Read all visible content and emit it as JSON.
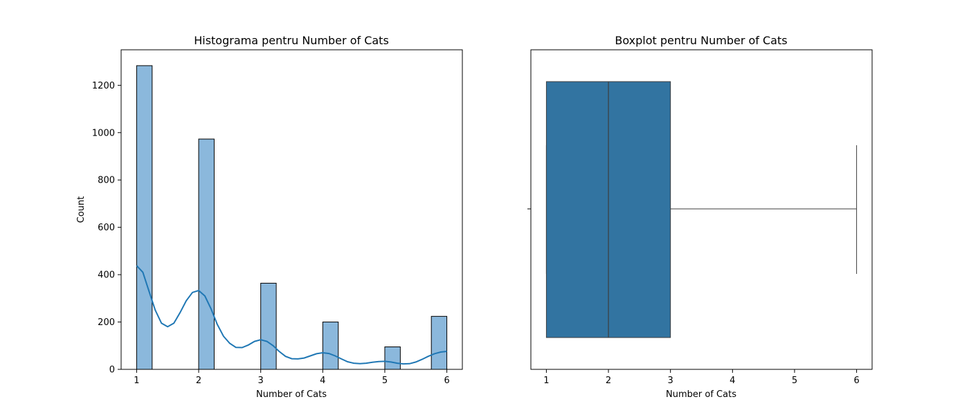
{
  "chart_data": [
    {
      "type": "bar",
      "title": "Histograma pentru Number of Cats",
      "xlabel": "Number of Cats",
      "ylabel": "Count",
      "xlim": [
        0.75,
        6.25
      ],
      "ylim": [
        0,
        1350
      ],
      "xticks": [
        "1",
        "2",
        "3",
        "4",
        "5",
        "6"
      ],
      "yticks": [
        "0",
        "200",
        "400",
        "600",
        "800",
        "1000",
        "1200"
      ],
      "bins": [
        {
          "start": 1.0,
          "end": 1.25,
          "count": 1283
        },
        {
          "start": 2.0,
          "end": 2.25,
          "count": 973
        },
        {
          "start": 3.0,
          "end": 3.25,
          "count": 364
        },
        {
          "start": 4.0,
          "end": 4.25,
          "count": 200
        },
        {
          "start": 5.0,
          "end": 5.25,
          "count": 95
        },
        {
          "start": 5.75,
          "end": 6.0,
          "count": 224
        }
      ],
      "kde": [
        [
          1.0,
          438
        ],
        [
          1.1,
          410
        ],
        [
          1.2,
          330
        ],
        [
          1.3,
          250
        ],
        [
          1.4,
          195
        ],
        [
          1.5,
          180
        ],
        [
          1.6,
          195
        ],
        [
          1.7,
          240
        ],
        [
          1.8,
          290
        ],
        [
          1.9,
          325
        ],
        [
          2.0,
          333
        ],
        [
          2.1,
          310
        ],
        [
          2.2,
          255
        ],
        [
          2.3,
          190
        ],
        [
          2.4,
          140
        ],
        [
          2.5,
          110
        ],
        [
          2.6,
          93
        ],
        [
          2.7,
          92
        ],
        [
          2.8,
          103
        ],
        [
          2.9,
          118
        ],
        [
          3.0,
          125
        ],
        [
          3.1,
          118
        ],
        [
          3.2,
          100
        ],
        [
          3.3,
          75
        ],
        [
          3.4,
          55
        ],
        [
          3.5,
          45
        ],
        [
          3.6,
          44
        ],
        [
          3.7,
          48
        ],
        [
          3.8,
          57
        ],
        [
          3.9,
          66
        ],
        [
          4.0,
          70
        ],
        [
          4.1,
          67
        ],
        [
          4.2,
          57
        ],
        [
          4.3,
          44
        ],
        [
          4.4,
          32
        ],
        [
          4.5,
          26
        ],
        [
          4.6,
          24
        ],
        [
          4.7,
          26
        ],
        [
          4.8,
          30
        ],
        [
          4.9,
          33
        ],
        [
          5.0,
          34
        ],
        [
          5.1,
          31
        ],
        [
          5.2,
          26
        ],
        [
          5.3,
          23
        ],
        [
          5.4,
          24
        ],
        [
          5.5,
          31
        ],
        [
          5.6,
          42
        ],
        [
          5.7,
          55
        ],
        [
          5.8,
          66
        ],
        [
          5.9,
          73
        ],
        [
          6.0,
          76
        ]
      ],
      "bar_color": "#8bb8dc",
      "line_color": "#1f77b4"
    },
    {
      "type": "boxplot",
      "title": "Boxplot pentru Number of Cats",
      "xlabel": "Number of Cats",
      "xlim": [
        0.75,
        6.25
      ],
      "xticks": [
        "1",
        "2",
        "3",
        "4",
        "5",
        "6"
      ],
      "box": {
        "whisker_low": 1,
        "q1": 1,
        "median": 2,
        "q3": 3,
        "whisker_high": 6
      },
      "box_color": "#3274a1"
    }
  ]
}
